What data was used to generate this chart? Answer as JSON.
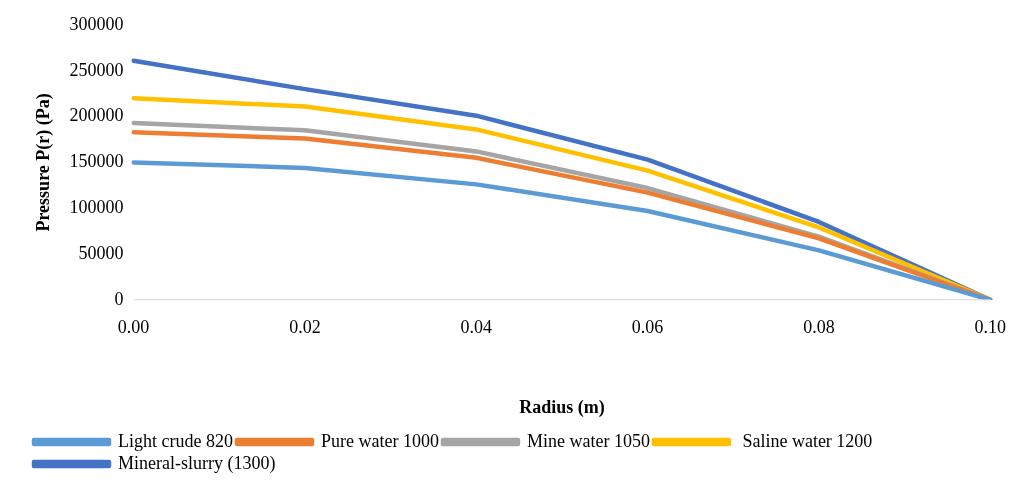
{
  "chart_data": {
    "type": "line",
    "xlabel": "Radius (m)",
    "ylabel": "Pressure P(r) (Pa)",
    "categories": [
      "0.00",
      "0.02",
      "0.04",
      "0.06",
      "0.08",
      "0.10"
    ],
    "series": [
      {
        "name": "Light crude 820",
        "color": "#5b9bd5",
        "values": [
          150000,
          144000,
          126000,
          97000,
          54000,
          0
        ]
      },
      {
        "name": "Pure water 1000",
        "color": "#ed7d31",
        "values": [
          183000,
          176000,
          155000,
          117000,
          67000,
          0
        ]
      },
      {
        "name": "Mine water 1050",
        "color": "#a5a5a5",
        "values": [
          193000,
          185000,
          162000,
          122000,
          69000,
          0
        ]
      },
      {
        "name": " Saline water 1200",
        "color": "#ffc000",
        "values": [
          220000,
          211000,
          186000,
          141000,
          79000,
          0
        ]
      },
      {
        "name": "Mineral-slurry (1300)",
        "color": "#4472c4",
        "values": [
          261000,
          230000,
          201000,
          153000,
          85000,
          0
        ]
      }
    ],
    "ylim": [
      0,
      300000
    ],
    "yticks": [
      0,
      50000,
      100000,
      150000,
      200000,
      250000,
      300000
    ],
    "grid": false,
    "legend": "bottom",
    "marker": "none",
    "line_style": "solid"
  }
}
